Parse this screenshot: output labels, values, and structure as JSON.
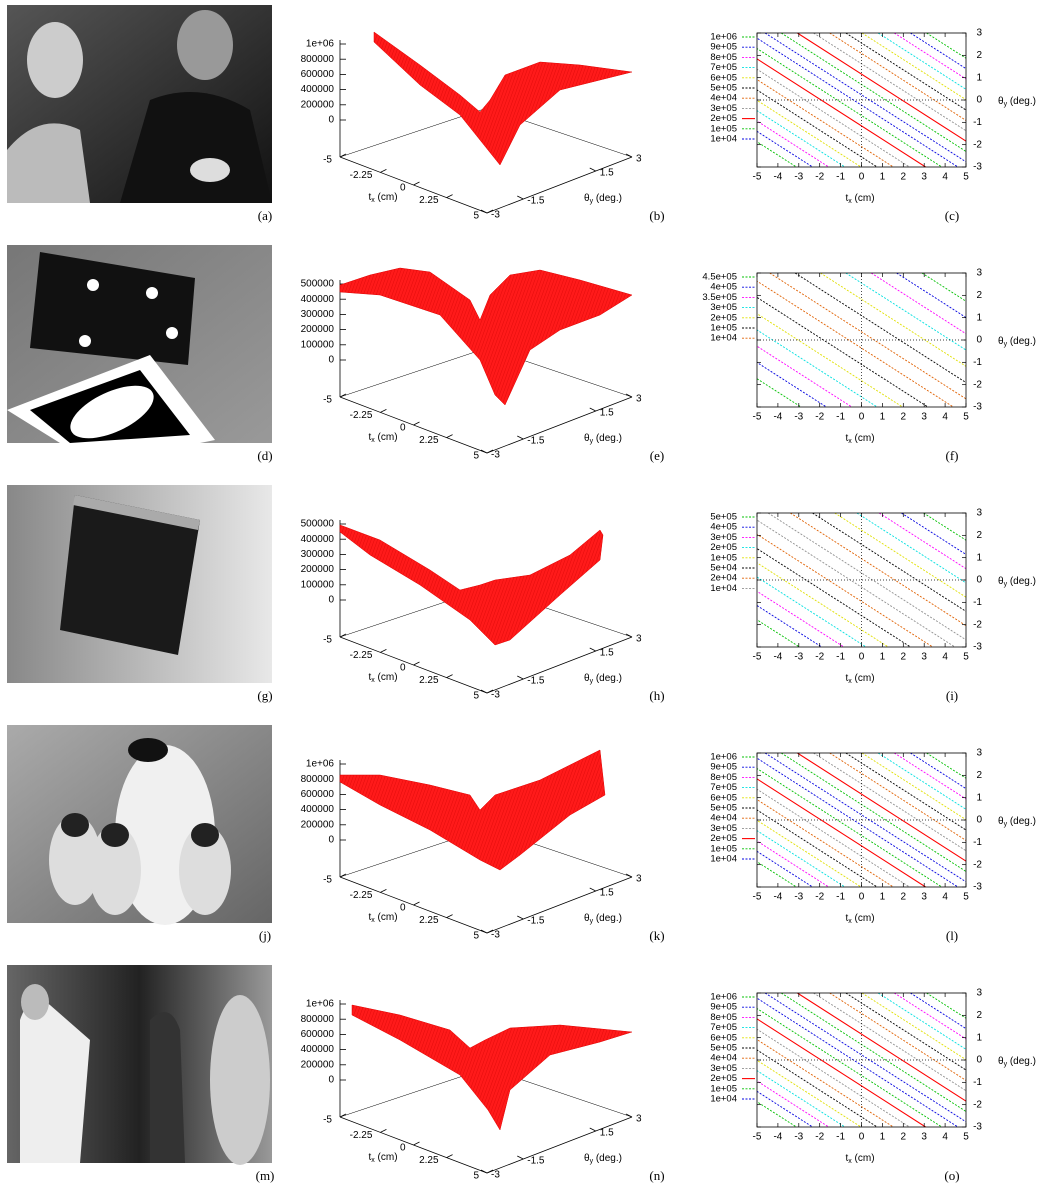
{
  "axes": {
    "tx_label": [
      "t",
      "x",
      " (cm)"
    ],
    "theta_label": [
      "θ",
      "y",
      " (deg.)"
    ],
    "surface_xticks": [
      -5,
      -2.25,
      0,
      2.25,
      5
    ],
    "surface_yticks": [
      -3,
      -1.5,
      1.5,
      3
    ],
    "contour_xticks": [
      -5,
      -4,
      -3,
      -2,
      -1,
      0,
      1,
      2,
      3,
      4,
      5
    ],
    "contour_yticks": [
      3,
      2,
      1,
      0,
      -1,
      -2,
      -3
    ]
  },
  "rows": [
    {
      "image": {
        "label": "(a)"
      },
      "surface": {
        "label": "(b)",
        "zticks": [
          {
            "value": 1000000,
            "label": "1e+06"
          },
          800000,
          600000,
          400000,
          200000,
          0
        ]
      },
      "contour": {
        "label": "(c)",
        "legend": [
          {
            "label": "1e+06",
            "color": "#00c000"
          },
          {
            "label": "9e+05",
            "color": "#0000e0"
          },
          {
            "label": "8e+05",
            "color": "#ff00ff"
          },
          {
            "label": "7e+05",
            "color": "#00e0e0"
          },
          {
            "label": "6e+05",
            "color": "#e0e000"
          },
          {
            "label": "5e+05",
            "color": "#000000"
          },
          {
            "label": "4e+04",
            "color": "#e06000"
          },
          {
            "label": "3e+05",
            "color": "#909090"
          },
          {
            "label": "2e+05",
            "color": "#ff0000"
          },
          {
            "label": "1e+05",
            "color": "#00c000"
          },
          {
            "label": "1e+04",
            "color": "#0000e0"
          }
        ]
      }
    },
    {
      "image": {
        "label": "(d)"
      },
      "surface": {
        "label": "(e)",
        "zticks": [
          500000,
          400000,
          300000,
          200000,
          100000,
          0
        ]
      },
      "contour": {
        "label": "(f)",
        "legend": [
          {
            "label": "4.5e+05",
            "color": "#00c000"
          },
          {
            "label": "4e+05",
            "color": "#0000e0"
          },
          {
            "label": "3.5e+05",
            "color": "#ff00ff"
          },
          {
            "label": "3e+05",
            "color": "#00e0e0"
          },
          {
            "label": "2e+05",
            "color": "#e0e000"
          },
          {
            "label": "1e+05",
            "color": "#000000"
          },
          {
            "label": "1e+04",
            "color": "#e06000"
          }
        ]
      }
    },
    {
      "image": {
        "label": "(g)"
      },
      "surface": {
        "label": "(h)",
        "zticks": [
          500000,
          400000,
          300000,
          200000,
          100000,
          0
        ]
      },
      "contour": {
        "label": "(i)",
        "legend": [
          {
            "label": "5e+05",
            "color": "#00c000"
          },
          {
            "label": "4e+05",
            "color": "#0000e0"
          },
          {
            "label": "3e+05",
            "color": "#ff00ff"
          },
          {
            "label": "2e+05",
            "color": "#00e0e0"
          },
          {
            "label": "1e+05",
            "color": "#e0e000"
          },
          {
            "label": "5e+04",
            "color": "#000000"
          },
          {
            "label": "2e+04",
            "color": "#e06000"
          },
          {
            "label": "1e+04",
            "color": "#909090"
          }
        ]
      }
    },
    {
      "image": {
        "label": "(j)"
      },
      "surface": {
        "label": "(k)",
        "zticks": [
          {
            "value": 1000000,
            "label": "1e+06"
          },
          800000,
          600000,
          400000,
          200000,
          0
        ]
      },
      "contour": {
        "label": "(l)",
        "legend": [
          {
            "label": "1e+06",
            "color": "#00c000"
          },
          {
            "label": "9e+05",
            "color": "#0000e0"
          },
          {
            "label": "8e+05",
            "color": "#ff00ff"
          },
          {
            "label": "7e+05",
            "color": "#00e0e0"
          },
          {
            "label": "6e+05",
            "color": "#e0e000"
          },
          {
            "label": "5e+05",
            "color": "#000000"
          },
          {
            "label": "4e+04",
            "color": "#e06000"
          },
          {
            "label": "3e+05",
            "color": "#909090"
          },
          {
            "label": "2e+05",
            "color": "#ff0000"
          },
          {
            "label": "1e+05",
            "color": "#00c000"
          },
          {
            "label": "1e+04",
            "color": "#0000e0"
          }
        ]
      }
    },
    {
      "image": {
        "label": "(m)"
      },
      "surface": {
        "label": "(n)",
        "zticks": [
          {
            "value": 1000000,
            "label": "1e+06"
          },
          800000,
          600000,
          400000,
          200000,
          0
        ]
      },
      "contour": {
        "label": "(o)",
        "legend": [
          {
            "label": "1e+06",
            "color": "#00c000"
          },
          {
            "label": "9e+05",
            "color": "#0000e0"
          },
          {
            "label": "8e+05",
            "color": "#ff00ff"
          },
          {
            "label": "7e+05",
            "color": "#00e0e0"
          },
          {
            "label": "6e+05",
            "color": "#e0e000"
          },
          {
            "label": "5e+05",
            "color": "#000000"
          },
          {
            "label": "4e+04",
            "color": "#e06000"
          },
          {
            "label": "3e+05",
            "color": "#909090"
          },
          {
            "label": "2e+05",
            "color": "#ff0000"
          },
          {
            "label": "1e+05",
            "color": "#00c000"
          },
          {
            "label": "1e+04",
            "color": "#0000e0"
          }
        ]
      }
    }
  ]
}
